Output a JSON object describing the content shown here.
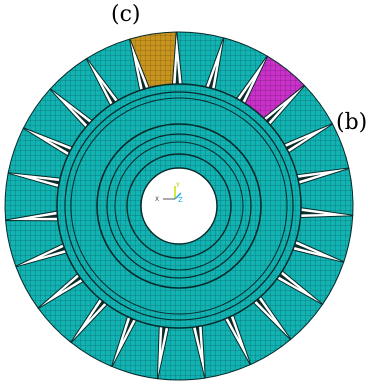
{
  "figure": {
    "labels": {
      "c": "(c)",
      "b": "(b)"
    },
    "blade_count": 23,
    "highlighted_blades": {
      "c": 0,
      "b": 3
    },
    "axis_triad": {
      "y": "Y",
      "x": "X",
      "z": "Z"
    },
    "colors": {
      "mesh_fill": "#11b3b3",
      "mesh_lines": "#0a3f3f",
      "blade_c": "#c7951f",
      "blade_b": "#c832c8",
      "triad_y": "#c8e000",
      "triad_z": "#22aaee",
      "triad_x": "#555555"
    }
  }
}
